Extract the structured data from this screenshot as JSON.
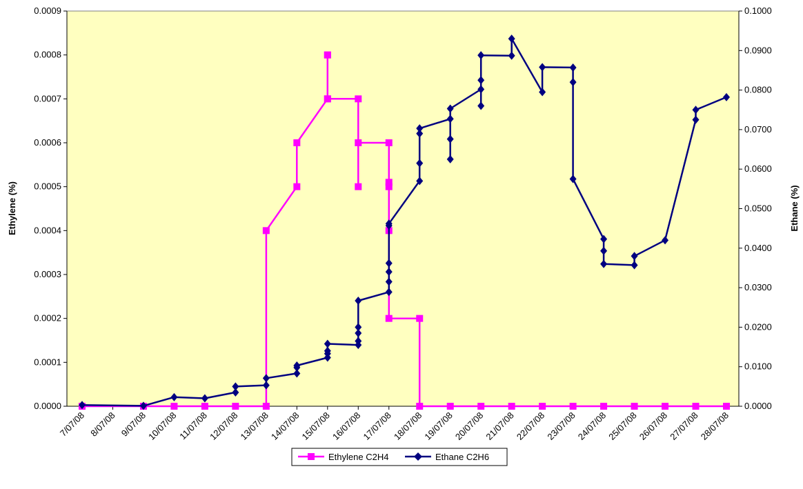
{
  "chart_data": {
    "type": "line",
    "title": "",
    "xlabel": "",
    "ylabel": "Ethylene (%)",
    "y2label": "Ethane (%)",
    "categories": [
      "7/07/08",
      "8/07/08",
      "9/07/08",
      "10/07/08",
      "11/07/08",
      "12/07/08",
      "13/07/08",
      "14/07/08",
      "15/07/08",
      "16/07/08",
      "17/07/08",
      "18/07/08",
      "19/07/08",
      "20/07/08",
      "21/07/08",
      "22/07/08",
      "23/07/08",
      "24/07/08",
      "25/07/08",
      "26/07/08",
      "27/07/08",
      "28/07/08"
    ],
    "ylim": [
      0,
      0.0009
    ],
    "y_ticks": [
      "0.0000",
      "0.0001",
      "0.0002",
      "0.0003",
      "0.0004",
      "0.0005",
      "0.0006",
      "0.0007",
      "0.0008",
      "0.0009"
    ],
    "y2lim": [
      0,
      0.1
    ],
    "y2_ticks": [
      "0.0000",
      "0.0100",
      "0.0200",
      "0.0300",
      "0.0400",
      "0.0500",
      "0.0600",
      "0.0700",
      "0.0800",
      "0.0900",
      "0.1000"
    ],
    "grid": false,
    "legend_position": "bottom",
    "plot_background": "#ffffc0",
    "series": [
      {
        "name": "Ethylene C2H4",
        "axis": "left",
        "color": "#ff00ff",
        "marker": "square",
        "points": [
          [
            7.0,
            0
          ],
          [
            9.0,
            0
          ],
          [
            10.0,
            0
          ],
          [
            11.0,
            0
          ],
          [
            12.0,
            0
          ],
          [
            13.0,
            0
          ],
          [
            13.0,
            0.0004
          ],
          [
            14.0,
            0.0005
          ],
          [
            14.0,
            0.0006
          ],
          [
            15.0,
            0.0007
          ],
          [
            15.0,
            0.0008
          ],
          [
            15.0,
            0.0008
          ],
          [
            15.0,
            0.0007
          ],
          [
            16.0,
            0.0007
          ],
          [
            16.0,
            0.0005
          ],
          [
            16.0,
            0.0006
          ],
          [
            17.0,
            0.0006
          ],
          [
            17.0,
            0.0005
          ],
          [
            17.0,
            0.00051
          ],
          [
            17.0,
            0.0004
          ],
          [
            17.0,
            0.0002
          ],
          [
            18.0,
            0.0002
          ],
          [
            18.0,
            0
          ],
          [
            19.0,
            0
          ],
          [
            20.0,
            0
          ],
          [
            21.0,
            0
          ],
          [
            22.0,
            0
          ],
          [
            23.0,
            0
          ],
          [
            24.0,
            0
          ],
          [
            25.0,
            0
          ],
          [
            26.0,
            0
          ],
          [
            27.0,
            0
          ],
          [
            28.0,
            0
          ]
        ]
      },
      {
        "name": "Ethane C2H6",
        "axis": "right",
        "color": "#000080",
        "marker": "diamond",
        "points": [
          [
            7.0,
            0.0003
          ],
          [
            9.0,
            0.0001
          ],
          [
            10.0,
            0.0023
          ],
          [
            11.0,
            0.002
          ],
          [
            12.0,
            0.0035
          ],
          [
            12.0,
            0.005
          ],
          [
            13.0,
            0.0053
          ],
          [
            13.0,
            0.0071
          ],
          [
            14.0,
            0.0083
          ],
          [
            14.0,
            0.0098
          ],
          [
            14.0,
            0.0103
          ],
          [
            15.0,
            0.0123
          ],
          [
            15.0,
            0.0133
          ],
          [
            15.0,
            0.014
          ],
          [
            15.0,
            0.0158
          ],
          [
            16.0,
            0.0155
          ],
          [
            16.0,
            0.0165
          ],
          [
            16.0,
            0.0185
          ],
          [
            16.0,
            0.02
          ],
          [
            16.0,
            0.0267
          ],
          [
            17.0,
            0.0289
          ],
          [
            17.0,
            0.0315
          ],
          [
            17.0,
            0.034
          ],
          [
            17.0,
            0.0362
          ],
          [
            17.0,
            0.0457
          ],
          [
            17.0,
            0.0462
          ],
          [
            18.0,
            0.057
          ],
          [
            18.0,
            0.0615
          ],
          [
            18.0,
            0.069
          ],
          [
            18.0,
            0.0703
          ],
          [
            19.0,
            0.0727
          ],
          [
            19.0,
            0.0625
          ],
          [
            19.0,
            0.0676
          ],
          [
            19.0,
            0.0753
          ],
          [
            20.0,
            0.0802
          ],
          [
            20.0,
            0.076
          ],
          [
            20.0,
            0.0825
          ],
          [
            20.0,
            0.0888
          ],
          [
            21.0,
            0.0887
          ],
          [
            21.0,
            0.093
          ],
          [
            22.0,
            0.0795
          ],
          [
            22.0,
            0.0858
          ],
          [
            23.0,
            0.0857
          ],
          [
            23.0,
            0.082
          ],
          [
            23.0,
            0.0575
          ],
          [
            24.0,
            0.0423
          ],
          [
            24.0,
            0.0393
          ],
          [
            24.0,
            0.036
          ],
          [
            25.0,
            0.0357
          ],
          [
            25.0,
            0.038
          ],
          [
            26.0,
            0.042
          ],
          [
            27.0,
            0.0725
          ],
          [
            27.0,
            0.075
          ],
          [
            28.0,
            0.0782
          ]
        ]
      }
    ]
  }
}
